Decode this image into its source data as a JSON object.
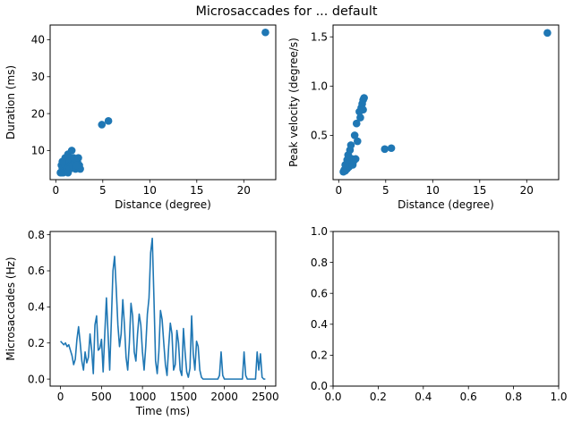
{
  "figure": {
    "title": "Microsaccades for ... default"
  },
  "chart_data": [
    {
      "type": "scatter",
      "title": "",
      "xlabel": "Distance (degree)",
      "ylabel": "Duration (ms)",
      "xlim": [
        -0.6,
        23.4
      ],
      "ylim": [
        2.1,
        44.0
      ],
      "xticks": [
        0,
        5,
        10,
        15,
        20
      ],
      "yticks": [
        10,
        20,
        30,
        40
      ],
      "color": "#1f77b4",
      "points": [
        [
          0.5,
          4
        ],
        [
          0.6,
          4
        ],
        [
          0.7,
          5
        ],
        [
          0.8,
          4
        ],
        [
          0.9,
          5
        ],
        [
          0.6,
          6
        ],
        [
          0.8,
          6
        ],
        [
          1.0,
          6
        ],
        [
          1.1,
          7
        ],
        [
          0.9,
          7
        ],
        [
          1.2,
          8
        ],
        [
          1.0,
          8
        ],
        [
          1.3,
          9
        ],
        [
          1.5,
          8
        ],
        [
          1.4,
          7
        ],
        [
          1.6,
          6
        ],
        [
          1.2,
          5
        ],
        [
          1.5,
          5
        ],
        [
          1.8,
          6
        ],
        [
          2.0,
          7
        ],
        [
          1.7,
          10
        ],
        [
          1.9,
          8
        ],
        [
          2.1,
          5
        ],
        [
          2.3,
          7
        ],
        [
          2.4,
          8
        ],
        [
          2.5,
          6
        ],
        [
          2.6,
          5
        ],
        [
          2.2,
          6
        ],
        [
          1.3,
          4
        ],
        [
          0.7,
          7
        ],
        [
          4.9,
          17
        ],
        [
          5.6,
          18
        ],
        [
          22.3,
          42
        ]
      ]
    },
    {
      "type": "scatter",
      "title": "",
      "xlabel": "Distance (degree)",
      "ylabel": "Peak velocity (degree/s)",
      "xlim": [
        -0.6,
        23.4
      ],
      "ylim": [
        0.05,
        1.62
      ],
      "xticks": [
        0,
        5,
        10,
        15,
        20
      ],
      "yticks": [
        0.5,
        1.0,
        1.5
      ],
      "color": "#1f77b4",
      "points": [
        [
          0.5,
          0.13
        ],
        [
          0.6,
          0.15
        ],
        [
          0.7,
          0.14
        ],
        [
          0.8,
          0.17
        ],
        [
          0.9,
          0.16
        ],
        [
          1.0,
          0.2
        ],
        [
          1.1,
          0.18
        ],
        [
          1.2,
          0.23
        ],
        [
          1.3,
          0.21
        ],
        [
          1.4,
          0.26
        ],
        [
          1.5,
          0.2
        ],
        [
          1.6,
          0.24
        ],
        [
          1.0,
          0.3
        ],
        [
          1.2,
          0.35
        ],
        [
          1.3,
          0.4
        ],
        [
          1.8,
          0.26
        ],
        [
          1.7,
          0.5
        ],
        [
          1.9,
          0.62
        ],
        [
          2.0,
          0.44
        ],
        [
          2.3,
          0.68
        ],
        [
          2.2,
          0.74
        ],
        [
          2.4,
          0.78
        ],
        [
          2.5,
          0.82
        ],
        [
          2.6,
          0.86
        ],
        [
          2.7,
          0.88
        ],
        [
          2.6,
          0.76
        ],
        [
          0.7,
          0.2
        ],
        [
          0.9,
          0.25
        ],
        [
          1.1,
          0.28
        ],
        [
          4.9,
          0.36
        ],
        [
          5.6,
          0.37
        ],
        [
          22.2,
          1.54
        ]
      ]
    },
    {
      "type": "line",
      "title": "",
      "xlabel": "Time (ms)",
      "ylabel": "Microsaccades (Hz)",
      "xlim": [
        -127,
        2627
      ],
      "ylim": [
        -0.039,
        0.818
      ],
      "xticks": [
        0,
        500,
        1000,
        1500,
        2000,
        2500
      ],
      "yticks": [
        0.0,
        0.2,
        0.4,
        0.6,
        0.8
      ],
      "color": "#1f77b4",
      "x": [
        0,
        20,
        40,
        60,
        80,
        100,
        120,
        140,
        160,
        180,
        200,
        220,
        240,
        260,
        280,
        300,
        320,
        340,
        360,
        380,
        400,
        420,
        440,
        460,
        480,
        500,
        520,
        540,
        560,
        580,
        600,
        620,
        640,
        660,
        680,
        700,
        720,
        740,
        760,
        780,
        800,
        820,
        840,
        860,
        880,
        900,
        920,
        940,
        960,
        980,
        1000,
        1020,
        1040,
        1060,
        1080,
        1100,
        1120,
        1140,
        1160,
        1180,
        1200,
        1220,
        1240,
        1260,
        1280,
        1300,
        1320,
        1340,
        1360,
        1380,
        1400,
        1420,
        1440,
        1460,
        1480,
        1500,
        1520,
        1540,
        1560,
        1580,
        1600,
        1620,
        1640,
        1660,
        1680,
        1700,
        1720,
        1740,
        1760,
        1780,
        1800,
        1820,
        1840,
        1860,
        1880,
        1900,
        1920,
        1940,
        1960,
        1980,
        2000,
        2020,
        2040,
        2060,
        2080,
        2100,
        2120,
        2140,
        2160,
        2180,
        2200,
        2220,
        2240,
        2260,
        2280,
        2300,
        2320,
        2340,
        2360,
        2380,
        2400,
        2420,
        2440,
        2460,
        2480,
        2500
      ],
      "y": [
        0.21,
        0.2,
        0.19,
        0.2,
        0.18,
        0.19,
        0.16,
        0.13,
        0.08,
        0.11,
        0.22,
        0.29,
        0.2,
        0.1,
        0.05,
        0.15,
        0.09,
        0.12,
        0.25,
        0.16,
        0.03,
        0.3,
        0.35,
        0.16,
        0.17,
        0.22,
        0.04,
        0.25,
        0.45,
        0.25,
        0.05,
        0.32,
        0.6,
        0.68,
        0.5,
        0.3,
        0.18,
        0.25,
        0.44,
        0.3,
        0.12,
        0.05,
        0.2,
        0.42,
        0.35,
        0.15,
        0.1,
        0.25,
        0.36,
        0.3,
        0.15,
        0.05,
        0.18,
        0.36,
        0.45,
        0.7,
        0.78,
        0.45,
        0.1,
        0.03,
        0.15,
        0.38,
        0.33,
        0.2,
        0.08,
        0.02,
        0.18,
        0.31,
        0.25,
        0.05,
        0.08,
        0.27,
        0.2,
        0.05,
        0.02,
        0.28,
        0.15,
        0.04,
        0.01,
        0.06,
        0.35,
        0.14,
        0.05,
        0.21,
        0.18,
        0.05,
        0.01,
        0.0,
        0.0,
        0.0,
        0.0,
        0.0,
        0.0,
        0.0,
        0.0,
        0.0,
        0.0,
        0.02,
        0.15,
        0.02,
        0.0,
        0.0,
        0.0,
        0.0,
        0.0,
        0.0,
        0.0,
        0.0,
        0.0,
        0.0,
        0.0,
        0.0,
        0.15,
        0.02,
        0.0,
        0.0,
        0.0,
        0.0,
        0.0,
        0.0,
        0.15,
        0.05,
        0.14,
        0.01,
        0.0,
        0.0
      ]
    },
    {
      "type": "empty",
      "title": "",
      "xlabel": "",
      "ylabel": "",
      "xlim": [
        0.0,
        1.0
      ],
      "ylim": [
        0.0,
        1.0
      ],
      "xticks": [
        0.0,
        0.2,
        0.4,
        0.6,
        0.8,
        1.0
      ],
      "yticks": [
        0.0,
        0.2,
        0.4,
        0.6,
        0.8,
        1.0
      ]
    }
  ]
}
